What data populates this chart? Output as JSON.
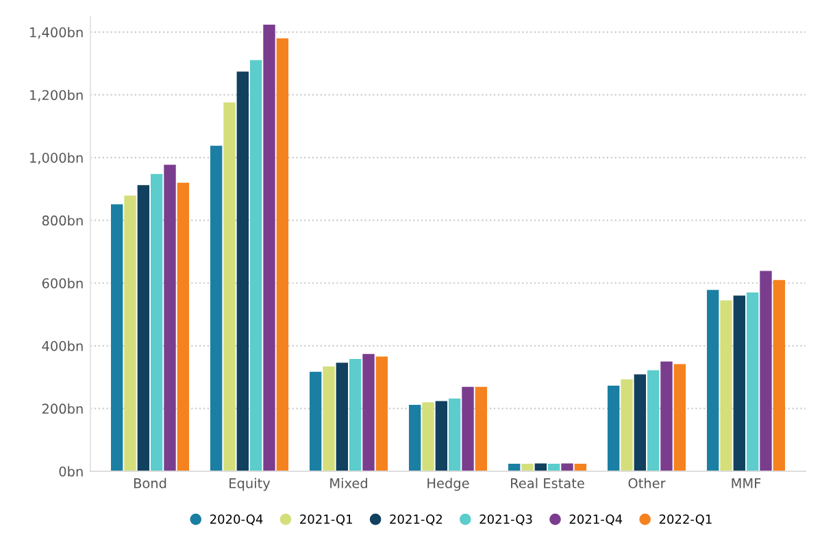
{
  "chart_data": {
    "type": "bar",
    "categories": [
      "Bond",
      "Equity",
      "Mixed",
      "Hedge",
      "Real Estate",
      "Other",
      "MMF"
    ],
    "series": [
      {
        "name": "2020-Q4",
        "color": "#1b7fa3",
        "values": [
          851,
          1038,
          317,
          212,
          24,
          273,
          578
        ]
      },
      {
        "name": "2021-Q1",
        "color": "#d4df7c",
        "values": [
          879,
          1176,
          334,
          220,
          24,
          293,
          545
        ]
      },
      {
        "name": "2021-Q2",
        "color": "#12405f",
        "values": [
          912,
          1274,
          346,
          224,
          25,
          309,
          560
        ]
      },
      {
        "name": "2021-Q3",
        "color": "#5ccccc",
        "values": [
          948,
          1311,
          358,
          232,
          24,
          322,
          570
        ]
      },
      {
        "name": "2021-Q4",
        "color": "#7a3d8e",
        "values": [
          977,
          1424,
          374,
          269,
          25,
          350,
          639
        ]
      },
      {
        "name": "2022-Q1",
        "color": "#f5821f",
        "values": [
          920,
          1380,
          366,
          269,
          24,
          342,
          610
        ]
      }
    ],
    "ylim": [
      0,
      1450
    ],
    "yticks": [
      {
        "value": 0,
        "label": "0bn"
      },
      {
        "value": 200,
        "label": "200bn"
      },
      {
        "value": 400,
        "label": "400bn"
      },
      {
        "value": 600,
        "label": "600bn"
      },
      {
        "value": 800,
        "label": "800bn"
      },
      {
        "value": 1000,
        "label": "1,000bn"
      },
      {
        "value": 1200,
        "label": "1,200bn"
      },
      {
        "value": 1400,
        "label": "1,400bn"
      }
    ],
    "grid": "y",
    "legend": "bottom"
  }
}
